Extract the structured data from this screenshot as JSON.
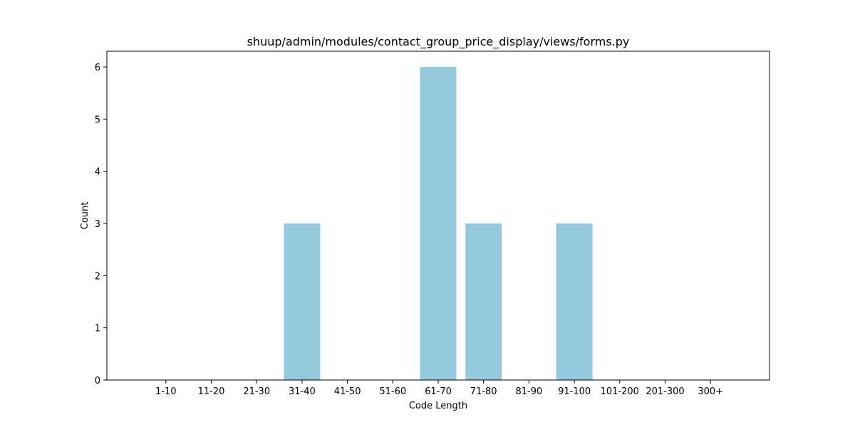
{
  "chart_data": {
    "type": "bar",
    "title": "shuup/admin/modules/contact_group_price_display/views/forms.py",
    "xlabel": "Code Length",
    "ylabel": "Count",
    "categories": [
      "1-10",
      "11-20",
      "21-30",
      "31-40",
      "41-50",
      "51-60",
      "61-70",
      "71-80",
      "81-90",
      "91-100",
      "101-200",
      "201-300",
      "300+"
    ],
    "values": [
      0,
      0,
      0,
      3,
      0,
      0,
      6,
      3,
      0,
      3,
      0,
      0,
      0
    ],
    "yticks": [
      0,
      1,
      2,
      3,
      4,
      5,
      6
    ],
    "ylim": [
      0,
      6.3
    ],
    "grid": false,
    "legend": "none",
    "bar_color": "#96c9dd"
  }
}
